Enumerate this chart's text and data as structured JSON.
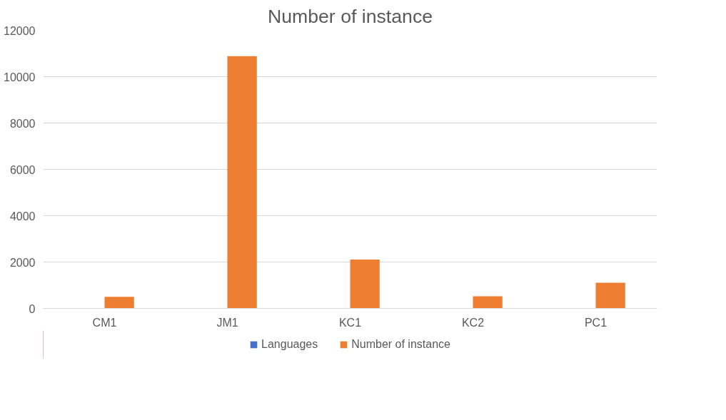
{
  "chart_data": {
    "type": "bar",
    "title": "Number of instance",
    "categories": [
      "CM1",
      "JM1",
      "KC1",
      "KC2",
      "PC1"
    ],
    "series": [
      {
        "name": "Languages",
        "color": "#4472c4",
        "values": [
          0,
          0,
          0,
          0,
          0
        ]
      },
      {
        "name": "Number of instance",
        "color": "#ed7d31",
        "values": [
          498,
          10885,
          2109,
          522,
          1109
        ]
      }
    ],
    "ylim": [
      0,
      12000
    ],
    "yticks": [
      0,
      2000,
      4000,
      6000,
      8000,
      10000,
      12000
    ],
    "grid": "y",
    "legend": "bottom"
  }
}
